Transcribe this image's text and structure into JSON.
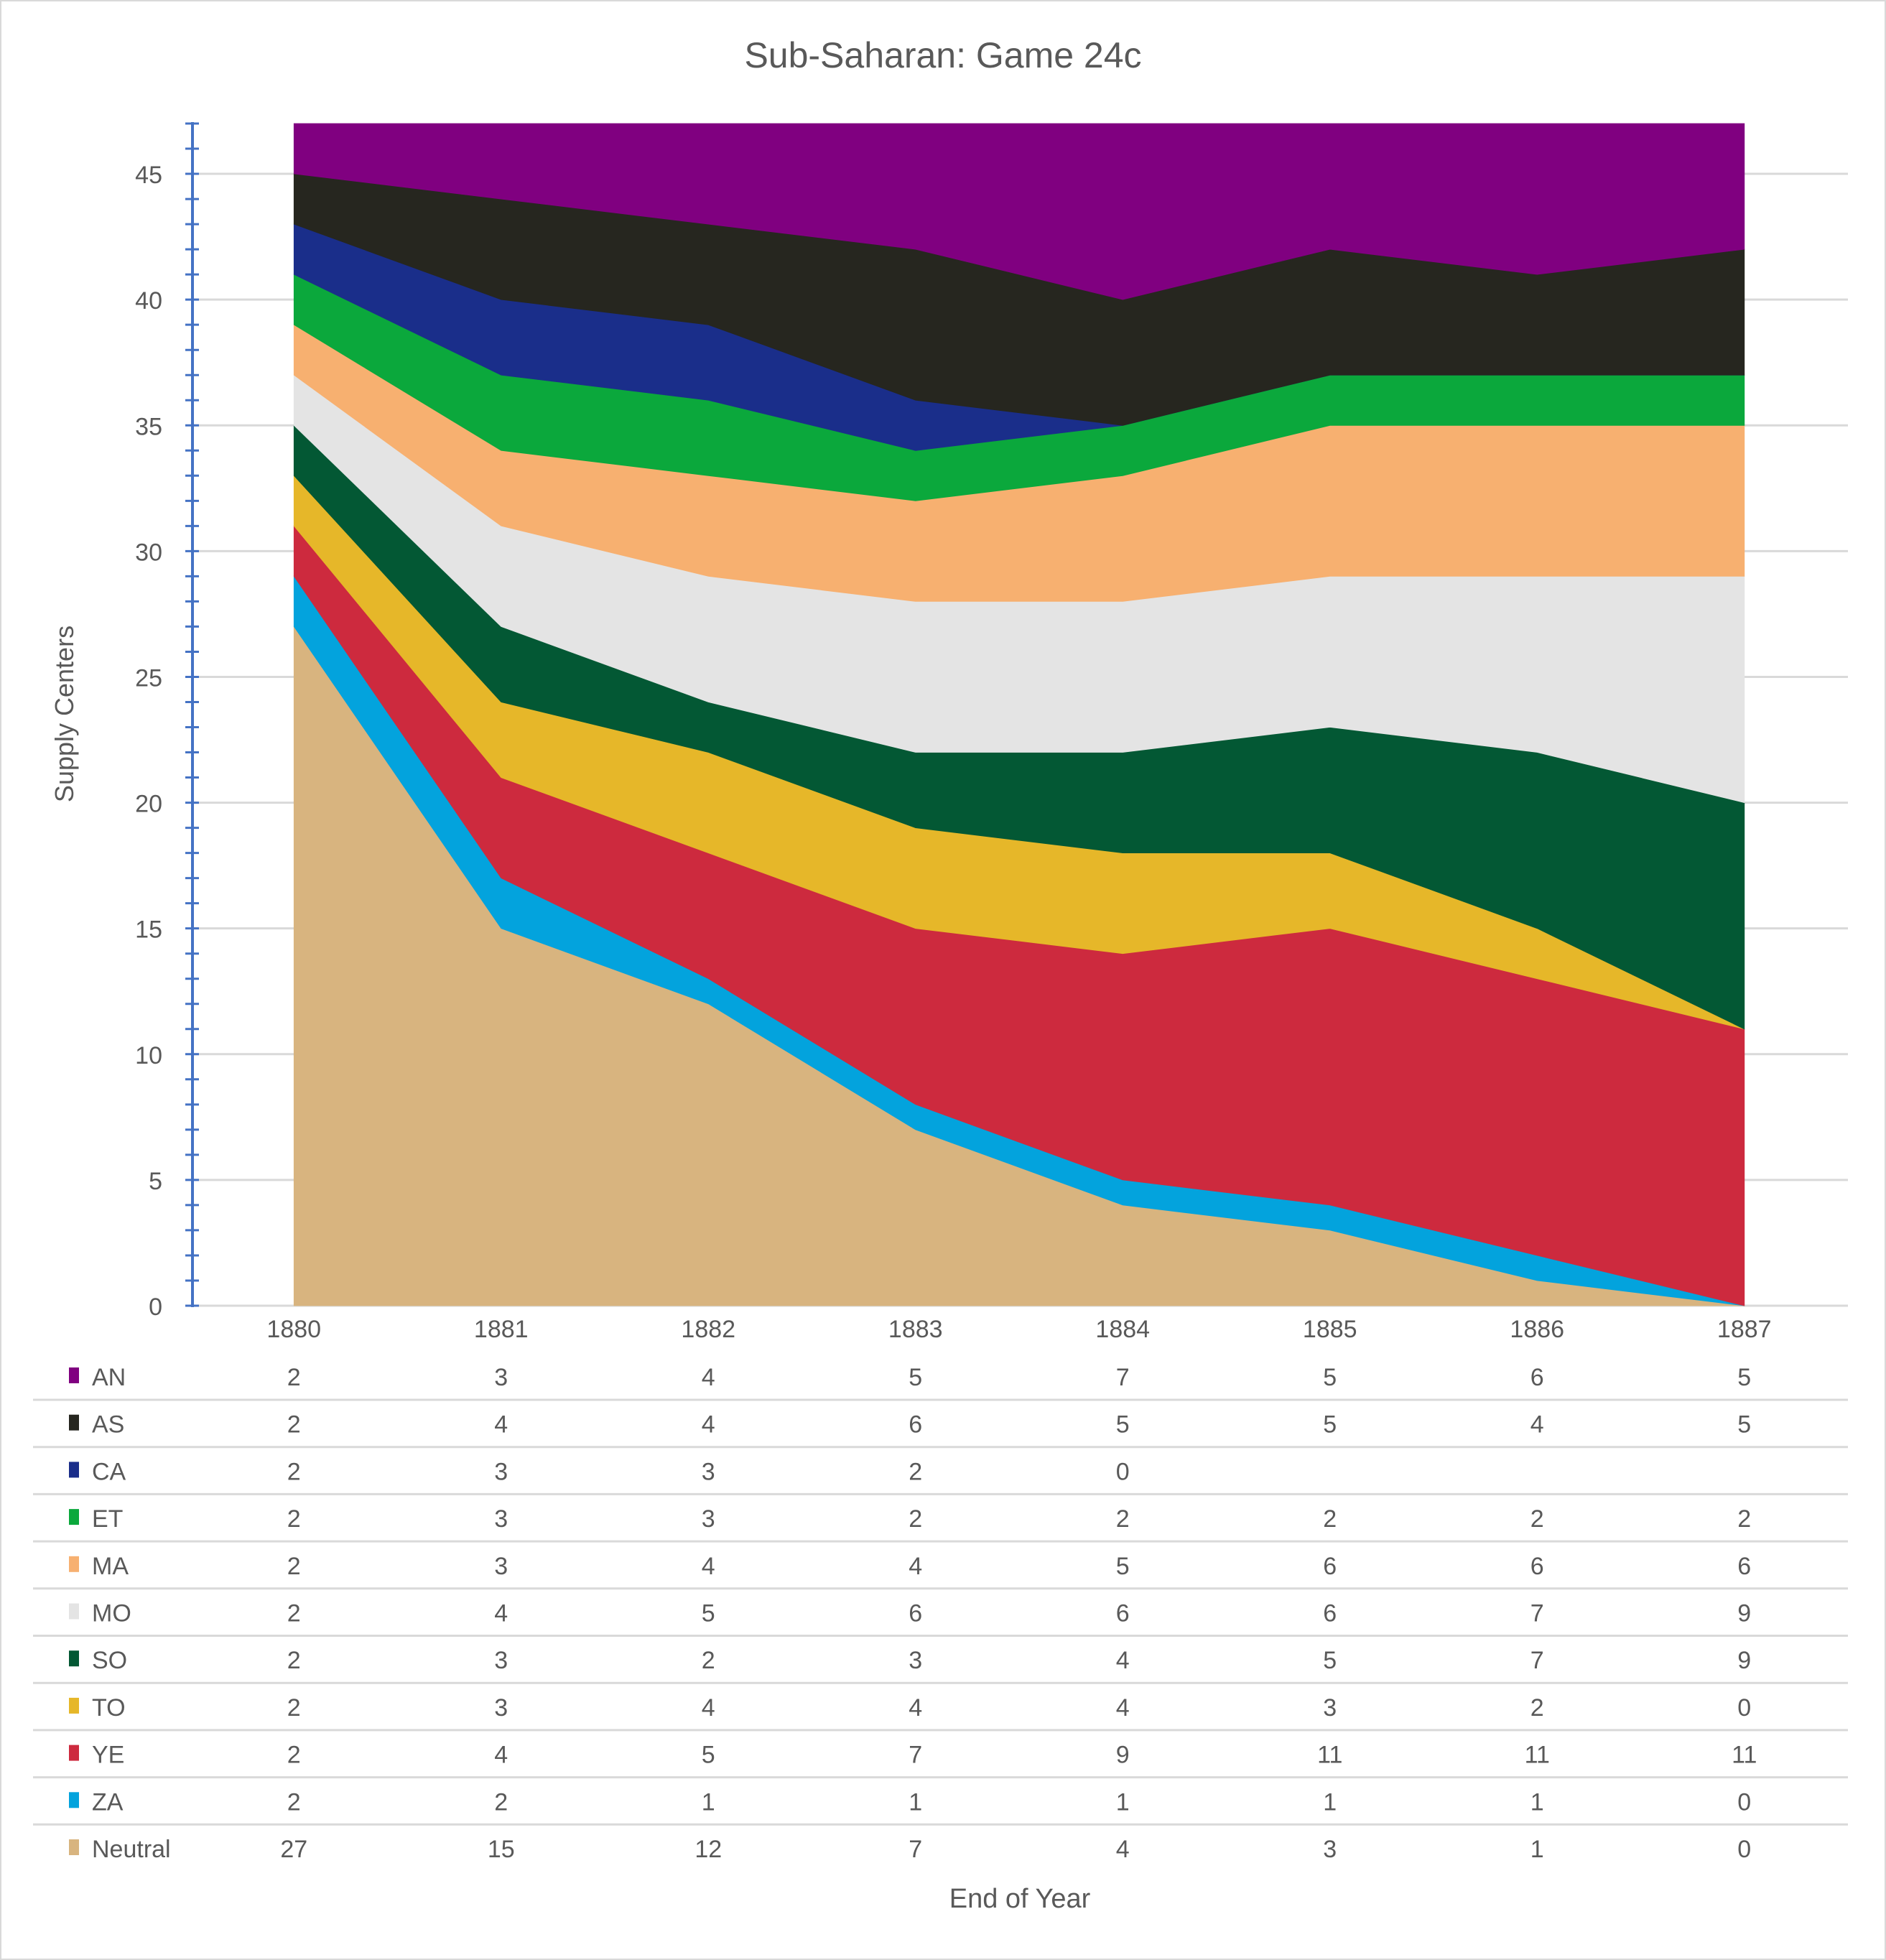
{
  "chart_data": {
    "type": "area",
    "stacked": true,
    "title": "Sub-Saharan: Game 24c",
    "xlabel": "End of Year",
    "ylabel": "Supply Centers",
    "categories": [
      "1880",
      "1881",
      "1882",
      "1883",
      "1884",
      "1885",
      "1886",
      "1887"
    ],
    "ylim": [
      0,
      47
    ],
    "yticks": [
      0,
      5,
      10,
      15,
      20,
      25,
      30,
      35,
      40,
      45
    ],
    "ytick_labels": [
      "0",
      "5",
      "10",
      "15",
      "20",
      "25",
      "30",
      "35",
      "40",
      "45"
    ],
    "grid": true,
    "legend": "data-table-below",
    "series": [
      {
        "name": "AN",
        "color": "#800080",
        "values": [
          2,
          3,
          4,
          5,
          7,
          5,
          6,
          5
        ],
        "labels": [
          "2",
          "3",
          "4",
          "5",
          "7",
          "5",
          "6",
          "5"
        ]
      },
      {
        "name": "AS",
        "color": "#26261f",
        "values": [
          2,
          4,
          4,
          6,
          5,
          5,
          4,
          5
        ],
        "labels": [
          "2",
          "4",
          "4",
          "6",
          "5",
          "5",
          "4",
          "5"
        ]
      },
      {
        "name": "CA",
        "color": "#1a2e8a",
        "values": [
          2,
          3,
          3,
          2,
          0,
          null,
          null,
          null
        ],
        "labels": [
          "2",
          "3",
          "3",
          "2",
          "0",
          "",
          "",
          ""
        ]
      },
      {
        "name": "ET",
        "color": "#0ba83c",
        "values": [
          2,
          3,
          3,
          2,
          2,
          2,
          2,
          2
        ],
        "labels": [
          "2",
          "3",
          "3",
          "2",
          "2",
          "2",
          "2",
          "2"
        ]
      },
      {
        "name": "MA",
        "color": "#f7b070",
        "values": [
          2,
          3,
          4,
          4,
          5,
          6,
          6,
          6
        ],
        "labels": [
          "2",
          "3",
          "4",
          "4",
          "5",
          "6",
          "6",
          "6"
        ]
      },
      {
        "name": "MO",
        "color": "#e4e4e4",
        "values": [
          2,
          4,
          5,
          6,
          6,
          6,
          7,
          9
        ],
        "labels": [
          "2",
          "4",
          "5",
          "6",
          "6",
          "6",
          "7",
          "9"
        ]
      },
      {
        "name": "SO",
        "color": "#035834",
        "values": [
          2,
          3,
          2,
          3,
          4,
          5,
          7,
          9
        ],
        "labels": [
          "2",
          "3",
          "2",
          "3",
          "4",
          "5",
          "7",
          "9"
        ]
      },
      {
        "name": "TO",
        "color": "#e6b729",
        "values": [
          2,
          3,
          4,
          4,
          4,
          3,
          2,
          0
        ],
        "labels": [
          "2",
          "3",
          "4",
          "4",
          "4",
          "3",
          "2",
          "0"
        ]
      },
      {
        "name": "YE",
        "color": "#cd2a3e",
        "values": [
          2,
          4,
          5,
          7,
          9,
          11,
          11,
          11
        ],
        "labels": [
          "2",
          "4",
          "5",
          "7",
          "9",
          "11",
          "11",
          "11"
        ]
      },
      {
        "name": "ZA",
        "color": "#03a3dd",
        "values": [
          2,
          2,
          1,
          1,
          1,
          1,
          1,
          0
        ],
        "labels": [
          "2",
          "2",
          "1",
          "1",
          "1",
          "1",
          "1",
          "0"
        ]
      },
      {
        "name": "Neutral",
        "color": "#d8b47f",
        "values": [
          27,
          15,
          12,
          7,
          4,
          3,
          1,
          0
        ],
        "labels": [
          "27",
          "15",
          "12",
          "7",
          "4",
          "3",
          "1",
          "0"
        ]
      }
    ],
    "axis_color": "#4472c4",
    "grid_color": "#d9d9d9",
    "text_color": "#595959"
  }
}
